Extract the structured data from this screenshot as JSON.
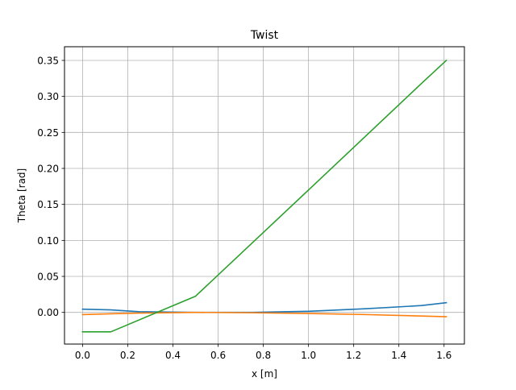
{
  "chart_data": {
    "type": "line",
    "title": "Twist",
    "xlabel": "x [m]",
    "ylabel": "Theta [rad]",
    "xlim": [
      -0.08,
      1.69
    ],
    "ylim": [
      -0.044,
      0.369
    ],
    "xticks": [
      0.0,
      0.2,
      0.4,
      0.6,
      0.8,
      1.0,
      1.2,
      1.4,
      1.6
    ],
    "xtick_labels": [
      "0.0",
      "0.2",
      "0.4",
      "0.6",
      "0.8",
      "1.0",
      "1.2",
      "1.4",
      "1.6"
    ],
    "yticks": [
      0.0,
      0.05,
      0.1,
      0.15,
      0.2,
      0.25,
      0.3,
      0.35
    ],
    "ytick_labels": [
      "0.00",
      "0.05",
      "0.10",
      "0.15",
      "0.20",
      "0.25",
      "0.30",
      "0.35"
    ],
    "grid": true,
    "legend": "none",
    "series": [
      {
        "color": "#1f77b4",
        "x": [
          0.0,
          0.125,
          0.25,
          0.5,
          0.75,
          1.0,
          1.25,
          1.5,
          1.61
        ],
        "y": [
          0.0045,
          0.0035,
          0.001,
          0.0,
          0.0,
          0.0015,
          0.005,
          0.0095,
          0.0135
        ]
      },
      {
        "color": "#ff7f0e",
        "x": [
          0.0,
          0.125,
          0.25,
          0.5,
          0.75,
          1.0,
          1.25,
          1.5,
          1.61
        ],
        "y": [
          -0.003,
          -0.002,
          -0.001,
          0.0,
          -0.0005,
          -0.0015,
          -0.003,
          -0.005,
          -0.006
        ]
      },
      {
        "color": "#2ca02c",
        "x": [
          0.0,
          0.125,
          0.5,
          1.0,
          1.5,
          1.61
        ],
        "y": [
          -0.027,
          -0.027,
          0.0225,
          0.17,
          0.318,
          0.35
        ]
      }
    ]
  }
}
